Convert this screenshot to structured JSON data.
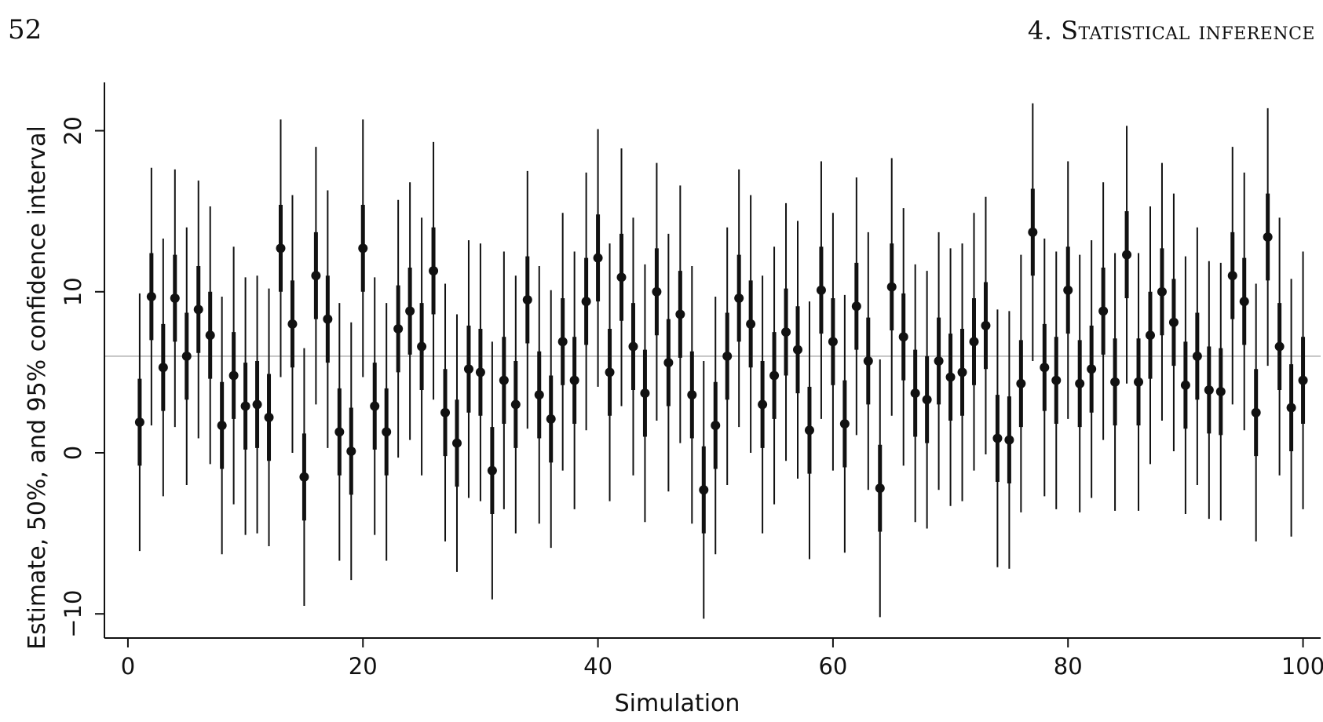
{
  "page": {
    "page_number": "52",
    "running_head": "4. Statistical inference"
  },
  "chart_data": {
    "type": "scatter",
    "title": "",
    "xlabel": "Simulation",
    "ylabel": "Estimate, 50%, and 95% confidence interval",
    "xlim": [
      -2,
      101.5
    ],
    "ylim": [
      -11.5,
      23
    ],
    "x_ticks": [
      0,
      20,
      40,
      60,
      80,
      100
    ],
    "y_ticks": [
      -10,
      0,
      10,
      20
    ],
    "reference_line": 6,
    "grid": false,
    "colors": {
      "marks": "#111111",
      "reference_line": "#b0b0b0"
    },
    "ci50_half_width": 2.7,
    "ci95_half_width": 8.0,
    "x": [
      1,
      2,
      3,
      4,
      5,
      6,
      7,
      8,
      9,
      10,
      11,
      12,
      13,
      14,
      15,
      16,
      17,
      18,
      19,
      20,
      21,
      22,
      23,
      24,
      25,
      26,
      27,
      28,
      29,
      30,
      31,
      32,
      33,
      34,
      35,
      36,
      37,
      38,
      39,
      40,
      41,
      42,
      43,
      44,
      45,
      46,
      47,
      48,
      49,
      50,
      51,
      52,
      53,
      54,
      55,
      56,
      57,
      58,
      59,
      60,
      61,
      62,
      63,
      64,
      65,
      66,
      67,
      68,
      69,
      70,
      71,
      72,
      73,
      74,
      75,
      76,
      77,
      78,
      79,
      80,
      81,
      82,
      83,
      84,
      85,
      86,
      87,
      88,
      89,
      90,
      91,
      92,
      93,
      94,
      95,
      96,
      97,
      98,
      99,
      100
    ],
    "estimates": [
      1.9,
      9.7,
      5.3,
      9.6,
      6.0,
      8.9,
      7.3,
      1.7,
      4.8,
      2.9,
      3.0,
      2.2,
      12.7,
      8.0,
      -1.5,
      11.0,
      8.3,
      1.3,
      0.1,
      12.7,
      2.9,
      1.3,
      7.7,
      8.8,
      6.6,
      11.3,
      2.5,
      0.6,
      5.2,
      5.0,
      -1.1,
      4.5,
      3.0,
      9.5,
      3.6,
      2.1,
      6.9,
      4.5,
      9.4,
      12.1,
      5.0,
      10.9,
      6.6,
      3.7,
      10.0,
      5.6,
      8.6,
      3.6,
      -2.3,
      1.7,
      6.0,
      9.6,
      8.0,
      3.0,
      4.8,
      7.5,
      6.4,
      1.4,
      10.1,
      6.9,
      1.8,
      9.1,
      5.7,
      -2.2,
      10.3,
      7.2,
      3.7,
      3.3,
      5.7,
      4.7,
      5.0,
      6.9,
      7.9,
      0.9,
      0.8,
      4.3,
      13.7,
      5.3,
      4.5,
      10.1,
      4.3,
      5.2,
      8.8,
      4.4,
      12.3,
      4.4,
      7.3,
      10.0,
      8.1,
      4.2,
      6.0,
      3.9,
      3.8,
      11.0,
      9.4,
      2.5,
      13.4,
      6.6,
      2.8,
      4.5
    ]
  }
}
